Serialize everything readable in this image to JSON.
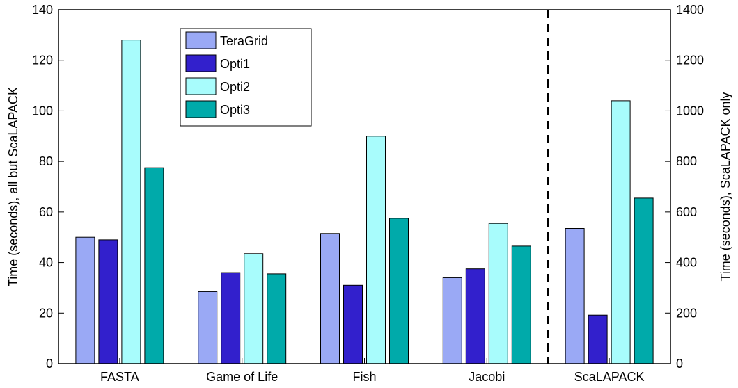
{
  "chart_data": {
    "type": "bar",
    "categories": [
      "FASTA",
      "Game of Life",
      "Fish",
      "Jacobi",
      "ScaLAPACK"
    ],
    "series": [
      {
        "name": "TeraGrid",
        "color": "#9aa9f5",
        "values": [
          50,
          28.5,
          51.5,
          34,
          535
        ]
      },
      {
        "name": "Opti1",
        "color": "#3220cc",
        "values": [
          49,
          36,
          31,
          37.5,
          192
        ]
      },
      {
        "name": "Opti2",
        "color": "#a8fcfc",
        "values": [
          128,
          43.5,
          90,
          55.5,
          1040
        ]
      },
      {
        "name": "Opti3",
        "color": "#00aaaa",
        "values": [
          77.5,
          35.5,
          57.5,
          46.5,
          655
        ]
      }
    ],
    "axis_assignment": [
      "left",
      "left",
      "left",
      "left",
      "right"
    ],
    "ylabel": "Time (seconds), all but ScaLAPACK",
    "ylabel_right": "Time (seconds), ScaLAPACK only",
    "ylim": [
      0,
      140
    ],
    "ylim_right": [
      0,
      1400
    ],
    "yticks": [
      0,
      20,
      40,
      60,
      80,
      100,
      120,
      140
    ],
    "yticks_right": [
      0,
      200,
      400,
      600,
      800,
      1000,
      1200,
      1400
    ],
    "separator": "dashed line between Jacobi and ScaLAPACK",
    "legend_position": "top-left",
    "grid": false
  }
}
